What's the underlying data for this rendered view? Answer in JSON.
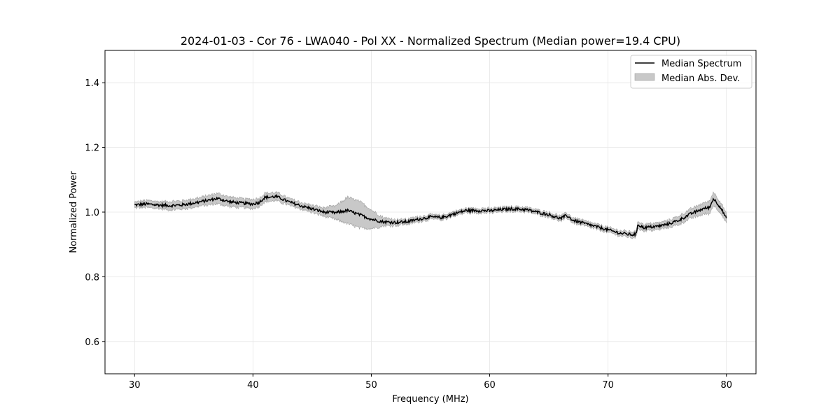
{
  "chart_data": {
    "type": "line",
    "title": "2024-01-03 - Cor 76 - LWA040 - Pol XX - Normalized Spectrum (Median power=19.4 CPU)",
    "xlabel": "Frequency (MHz)",
    "ylabel": "Normalized Power",
    "xlim": [
      27.5,
      82.5
    ],
    "ylim": [
      0.5,
      1.5
    ],
    "xticks": [
      30,
      40,
      50,
      60,
      70,
      80
    ],
    "yticks": [
      0.6,
      0.8,
      1.0,
      1.2,
      1.4
    ],
    "xtick_labels": [
      "30",
      "40",
      "50",
      "60",
      "70",
      "80"
    ],
    "ytick_labels": [
      "0.6",
      "0.8",
      "1.0",
      "1.2",
      "1.4"
    ],
    "grid": true,
    "legend_position": "top-right",
    "legend": [
      "Median Spectrum",
      "Median Abs. Dev."
    ],
    "colors": {
      "line": "#000000",
      "band": "#c8c8c8",
      "band_edge": "#a0a0a0"
    },
    "series": [
      {
        "name": "Median Spectrum",
        "x": [
          30,
          31,
          32,
          33,
          34,
          35,
          36,
          37,
          38,
          39,
          40,
          40.5,
          41,
          42,
          43,
          44,
          45,
          46,
          47,
          48,
          49,
          50,
          51,
          52,
          53,
          54,
          55,
          56,
          57,
          58,
          59,
          60,
          61,
          62,
          63,
          64,
          65,
          66,
          66.5,
          67,
          68,
          69,
          70,
          71,
          72,
          72.4,
          72.5,
          73,
          74,
          75,
          76,
          77,
          78,
          78.6,
          78.9,
          79.5,
          80
        ],
        "y": [
          1.022,
          1.025,
          1.022,
          1.02,
          1.022,
          1.028,
          1.035,
          1.042,
          1.032,
          1.028,
          1.025,
          1.03,
          1.045,
          1.048,
          1.032,
          1.02,
          1.01,
          1.0,
          0.998,
          1.005,
          0.992,
          0.978,
          0.97,
          0.968,
          0.97,
          0.978,
          0.985,
          0.983,
          0.995,
          1.005,
          1.005,
          1.004,
          1.008,
          1.01,
          1.008,
          1.0,
          0.992,
          0.98,
          0.99,
          0.975,
          0.965,
          0.955,
          0.945,
          0.935,
          0.93,
          0.932,
          0.962,
          0.952,
          0.955,
          0.962,
          0.975,
          0.995,
          1.01,
          1.015,
          1.042,
          1.015,
          0.98
        ]
      },
      {
        "name": "Median Abs. Dev.",
        "x": [
          30,
          31,
          32,
          33,
          34,
          35,
          36,
          37,
          38,
          39,
          40,
          40.5,
          41,
          42,
          43,
          44,
          45,
          46,
          47,
          48,
          49,
          50,
          51,
          52,
          53,
          54,
          55,
          56,
          57,
          58,
          59,
          60,
          61,
          62,
          63,
          64,
          65,
          66,
          66.5,
          67,
          68,
          69,
          70,
          71,
          72,
          72.4,
          72.5,
          73,
          74,
          75,
          76,
          77,
          78,
          78.6,
          78.9,
          79.5,
          80
        ],
        "mad": [
          0.008,
          0.01,
          0.01,
          0.012,
          0.012,
          0.012,
          0.013,
          0.015,
          0.014,
          0.013,
          0.013,
          0.012,
          0.012,
          0.012,
          0.01,
          0.009,
          0.01,
          0.012,
          0.02,
          0.04,
          0.04,
          0.028,
          0.012,
          0.008,
          0.007,
          0.007,
          0.006,
          0.006,
          0.006,
          0.006,
          0.006,
          0.006,
          0.006,
          0.006,
          0.006,
          0.006,
          0.006,
          0.007,
          0.007,
          0.007,
          0.007,
          0.007,
          0.007,
          0.007,
          0.008,
          0.008,
          0.01,
          0.009,
          0.009,
          0.01,
          0.012,
          0.014,
          0.016,
          0.018,
          0.02,
          0.016,
          0.014
        ]
      }
    ]
  }
}
